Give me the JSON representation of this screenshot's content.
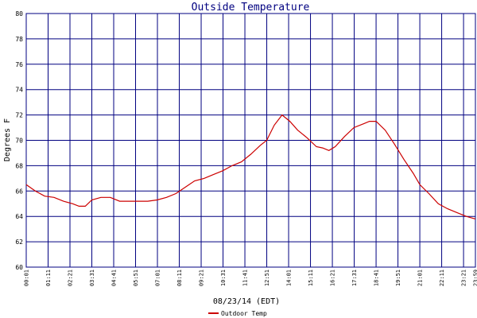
{
  "chart_data": {
    "type": "line",
    "title": "Outside Temperature",
    "xlabel": "08/23/14 (EDT)",
    "ylabel": "Degrees F",
    "ylim": [
      60,
      80
    ],
    "yticks": [
      60,
      62,
      64,
      66,
      68,
      70,
      72,
      74,
      76,
      78,
      80
    ],
    "xlim_hours": [
      0.0167,
      23.983
    ],
    "x_tick_labels": [
      "00:01",
      "01:11",
      "02:21",
      "03:31",
      "04:41",
      "05:51",
      "07:01",
      "08:11",
      "09:21",
      "10:31",
      "11:41",
      "12:51",
      "14:01",
      "15:11",
      "16:21",
      "17:31",
      "18:41",
      "19:51",
      "21:01",
      "22:11",
      "23:21",
      "23:59"
    ],
    "grid": true,
    "legend": "bottom-left",
    "colors": {
      "series": "#cc0000",
      "grid": "#000080",
      "title": "#000080",
      "background": "#ffffff"
    },
    "series": [
      {
        "name": "Outdoor Temp",
        "x": [
          "00:01",
          "00:30",
          "01:00",
          "01:30",
          "02:00",
          "02:30",
          "02:50",
          "03:10",
          "03:31",
          "04:00",
          "04:30",
          "05:00",
          "05:30",
          "06:00",
          "06:30",
          "07:00",
          "07:30",
          "08:00",
          "08:30",
          "09:00",
          "09:30",
          "10:00",
          "10:30",
          "11:00",
          "11:30",
          "12:00",
          "12:30",
          "12:51",
          "13:15",
          "13:40",
          "14:05",
          "14:30",
          "15:00",
          "15:30",
          "15:50",
          "16:10",
          "16:30",
          "17:00",
          "17:30",
          "18:00",
          "18:20",
          "18:41",
          "19:10",
          "19:40",
          "20:10",
          "20:40",
          "21:01",
          "21:30",
          "22:00",
          "22:30",
          "23:00",
          "23:30",
          "23:59"
        ],
        "y": [
          66.5,
          66.0,
          65.6,
          65.5,
          65.2,
          65.0,
          64.8,
          64.8,
          65.3,
          65.5,
          65.5,
          65.2,
          65.2,
          65.2,
          65.2,
          65.3,
          65.5,
          65.8,
          66.3,
          66.8,
          67.0,
          67.3,
          67.6,
          68.0,
          68.3,
          68.9,
          69.6,
          70.0,
          71.2,
          72.0,
          71.5,
          70.8,
          70.2,
          69.5,
          69.4,
          69.2,
          69.5,
          70.3,
          71.0,
          71.3,
          71.5,
          71.5,
          70.8,
          69.7,
          68.5,
          67.4,
          66.5,
          65.8,
          65.0,
          64.6,
          64.3,
          64.0,
          63.8
        ]
      }
    ]
  }
}
